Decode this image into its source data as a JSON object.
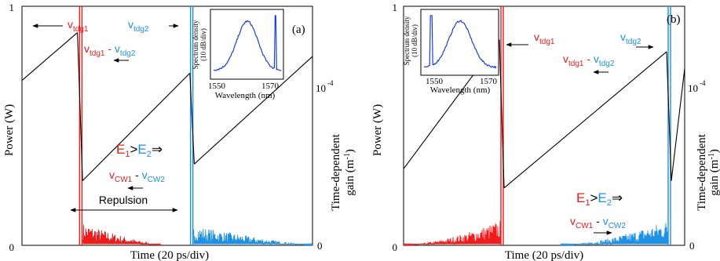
{
  "colors": {
    "red": "#ee1c1c",
    "blue": "#1e90e6",
    "black": "#000000",
    "inset_blue": "#1a3fd6"
  },
  "figure": {
    "xlabel": "Time (20 ps/div)",
    "ylabel_left": "Power (W)",
    "ylabel_right_line1": "Time-dependent",
    "ylabel_right_line2": "gain (m",
    "ylabel_right_exp": "-1",
    "ylabel_right_close": ")"
  },
  "chart_data": [
    {
      "panel": "(a)",
      "type": "line",
      "xlabel": "Time (20 ps/div)",
      "ylabel": "Power (W)",
      "ylabel_right": "Time-dependent gain (m-1)",
      "y_ticks": [
        "0",
        "1"
      ],
      "y_right_ticks": [
        "0",
        "10",
        "-4"
      ],
      "series": [
        {
          "name": "red pulse",
          "color": "red",
          "peak_x": 80,
          "peak_y": 1.0,
          "tail_end_x": 190,
          "tail_level": 0.08,
          "side": "right"
        },
        {
          "name": "blue pulse",
          "color": "blue",
          "peak_x": 232,
          "peak_y": 1.0,
          "tail_end_x": 398,
          "tail_level": 0.07,
          "side": "right"
        },
        {
          "name": "gain",
          "color": "black",
          "segments": [
            {
              "x": [
                0,
                76
              ],
              "y": [
                0.69,
                0.89
              ]
            },
            {
              "x": [
                83,
                230
              ],
              "y": [
                0.27,
                0.72
              ]
            },
            {
              "x": [
                236,
                398
              ],
              "y": [
                0.34,
                0.79
              ]
            }
          ]
        }
      ],
      "annotations": {
        "v1_main": "v",
        "v1_sub": "tdg1",
        "v2_main": "v",
        "v2_sub": "tdg2",
        "diff_left_main": "v",
        "diff_left_sub": "tdg1",
        "diff_mid": " - ",
        "diff_right_main": "v",
        "diff_right_sub": "tdg2",
        "e1_main": "E",
        "e1_sub": "1",
        "gt": ">",
        "e2_main": "E",
        "e2_sub": "2",
        "implies": "⇒",
        "cw_left_main": "v",
        "cw_left_sub": "CW1",
        "cw_mid": " - ",
        "cw_right_main": "v",
        "cw_right_sub": "CW2",
        "repulsion": "Repulsion",
        "panel_label": "(a)"
      },
      "inset": {
        "ylabel_line1": "Spectrum density",
        "ylabel_line2": "(10 dB/div)",
        "x_ticks": [
          "1550",
          "1570"
        ],
        "xlabel": "Wavelength (nm)"
      }
    },
    {
      "panel": "(b)",
      "type": "line",
      "xlabel": "Time (20 ps/div)",
      "ylabel": "Power (W)",
      "ylabel_right": "Time-dependent gain (m-1)",
      "y_ticks": [
        "0",
        "1"
      ],
      "y_right_ticks": [
        "0",
        "10",
        "-4"
      ],
      "series": [
        {
          "name": "red pulse",
          "color": "red",
          "peak_x": 125,
          "peak_y": 1.0,
          "tail_start_x": 0,
          "tail_level": 0.09,
          "side": "left"
        },
        {
          "name": "blue pulse",
          "color": "blue",
          "peak_x": 338,
          "peak_y": 1.0,
          "tail_start_x": 200,
          "tail_level": 0.09,
          "side": "left"
        },
        {
          "name": "gain",
          "color": "black",
          "segments": [
            {
              "x": [
                0,
                122
              ],
              "y": [
                0.32,
                0.86
              ]
            },
            {
              "x": [
                128,
                335
              ],
              "y": [
                0.24,
                0.81
              ]
            },
            {
              "x": [
                341,
                358
              ],
              "y": [
                0.27,
                0.74
              ]
            }
          ]
        }
      ],
      "annotations": {
        "v1_main": "v",
        "v1_sub": "tdg1",
        "v2_main": "v",
        "v2_sub": "tdg2",
        "diff_left_main": "v",
        "diff_left_sub": "tdg1",
        "diff_mid": " - ",
        "diff_right_main": "v",
        "diff_right_sub": "tdg2",
        "e1_main": "E",
        "e1_sub": "1",
        "gt": ">",
        "e2_main": "E",
        "e2_sub": "2",
        "implies": "⇒",
        "cw_left_main": "v",
        "cw_left_sub": "CW1",
        "cw_mid": " - ",
        "cw_right_main": "v",
        "cw_right_sub": "CW2",
        "panel_label": "(b)"
      },
      "inset": {
        "ylabel_line1": "Spectrum density",
        "ylabel_line2": "(10 dB/div)",
        "x_ticks": [
          "1550",
          "1570"
        ],
        "xlabel": "Wavelength (nm)"
      }
    }
  ]
}
